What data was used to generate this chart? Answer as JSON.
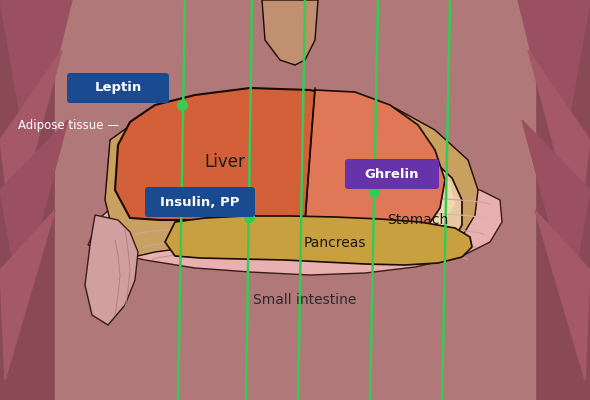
{
  "bg_color": "#8a4a55",
  "body_side_color": "#b07878",
  "adipose_tri_dark": "#9a5565",
  "adipose_tri_mid": "#b06878",
  "liver_color": "#d4603a",
  "liver_right_lobe": "#e07858",
  "liver_outline": "#1a0a00",
  "liver_wrap_color": "#c8a060",
  "stomach_color": "#e0c090",
  "stomach_outline": "#1a0a00",
  "stomach_shadow": "#c8a870",
  "pancreas_color": "#c8a040",
  "pancreas_outline": "#1a0a00",
  "intestine_color": "#e8b0b0",
  "intestine_outline": "#3a1a1a",
  "intestine_fold": "#c89090",
  "colon_color": "#d09898",
  "spine_color": "#c09070",
  "spine_outline": "#1a0a00",
  "green_color": "#33cc55",
  "dot_color": "#33cc55",
  "leptin_box": "#1a4a90",
  "ghrelin_box": "#6633aa",
  "insulin_box": "#1a4a90",
  "white": "#ffffff",
  "dark_text": "#1a1a1a",
  "labels": {
    "liver": "Liver",
    "stomach": "Stomach",
    "pancreas": "Pancreas",
    "small_intestine": "Small intestine",
    "adipose": "Adipose tissue —",
    "leptin": "Leptin",
    "ghrelin": "Ghrelin",
    "insulin": "Insulin, PP"
  },
  "figsize": [
    5.9,
    4.0
  ],
  "dpi": 100
}
